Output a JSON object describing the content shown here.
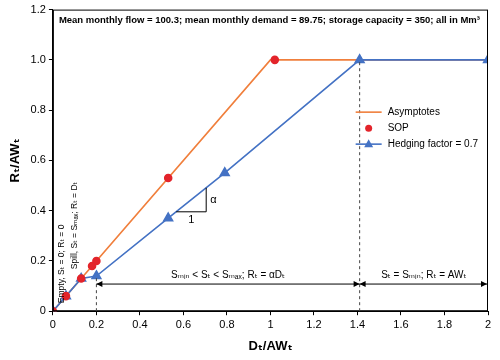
{
  "chart_data": {
    "type": "line",
    "title": "Mean monthly flow = 100.3; mean monthly demand = 89.75; storage capacity = 350; all in Mm³",
    "x_label": "Dₜ/AWₜ",
    "y_label": "Rₜ/AWₜ",
    "xlim": [
      0,
      2
    ],
    "xticks": [
      0,
      0.2,
      0.4,
      0.6,
      0.8,
      1,
      1.2,
      1.4,
      1.6,
      1.8,
      2
    ],
    "ylim": [
      0,
      1.2
    ],
    "yticks": [
      0,
      0.2,
      0.4,
      0.6,
      0.8,
      {
        "value": 1,
        "label": "1.0"
      },
      1.2
    ],
    "grid": false,
    "legend": "right",
    "boundaries": [
      0.2,
      1.41
    ],
    "annotations": {
      "empty": "Empty, Sₜ = 0; Rₜ = 0",
      "spill": "Spill, Sₜ = Sₘₐₓ; Rₜ = Dₜ",
      "hedging_zone": "Sₘᵢₙ < Sₜ < Sₘₐₓ; Rₜ = αDₜ",
      "empty_zone": "Sₜ = Sₘᵢₙ; Rₜ = AWₜ",
      "slope_rise": "α",
      "slope_run": "1"
    },
    "series": [
      {
        "name": "Asymptotes",
        "color": "#f07f3c",
        "type": "line",
        "marker": "none",
        "x": [
          0,
          1,
          2
        ],
        "values": [
          0,
          1,
          1
        ]
      },
      {
        "name": "SOP",
        "color": "#e3242b",
        "type": "scatter",
        "marker": "circle",
        "x": [
          0,
          0.06,
          0.13,
          0.18,
          0.2,
          0.53,
          1.02
        ],
        "values": [
          0,
          0.06,
          0.13,
          0.18,
          0.2,
          0.53,
          1
        ]
      },
      {
        "name": "Hedging factor = 0.7",
        "color": "#4472c4",
        "type": "line",
        "marker": "triangle",
        "x": [
          0,
          0.06,
          0.13,
          0.2,
          0.53,
          0.79,
          1.41,
          2
        ],
        "values": [
          0,
          0.06,
          0.13,
          0.14,
          0.37,
          0.55,
          1,
          1
        ]
      }
    ]
  }
}
